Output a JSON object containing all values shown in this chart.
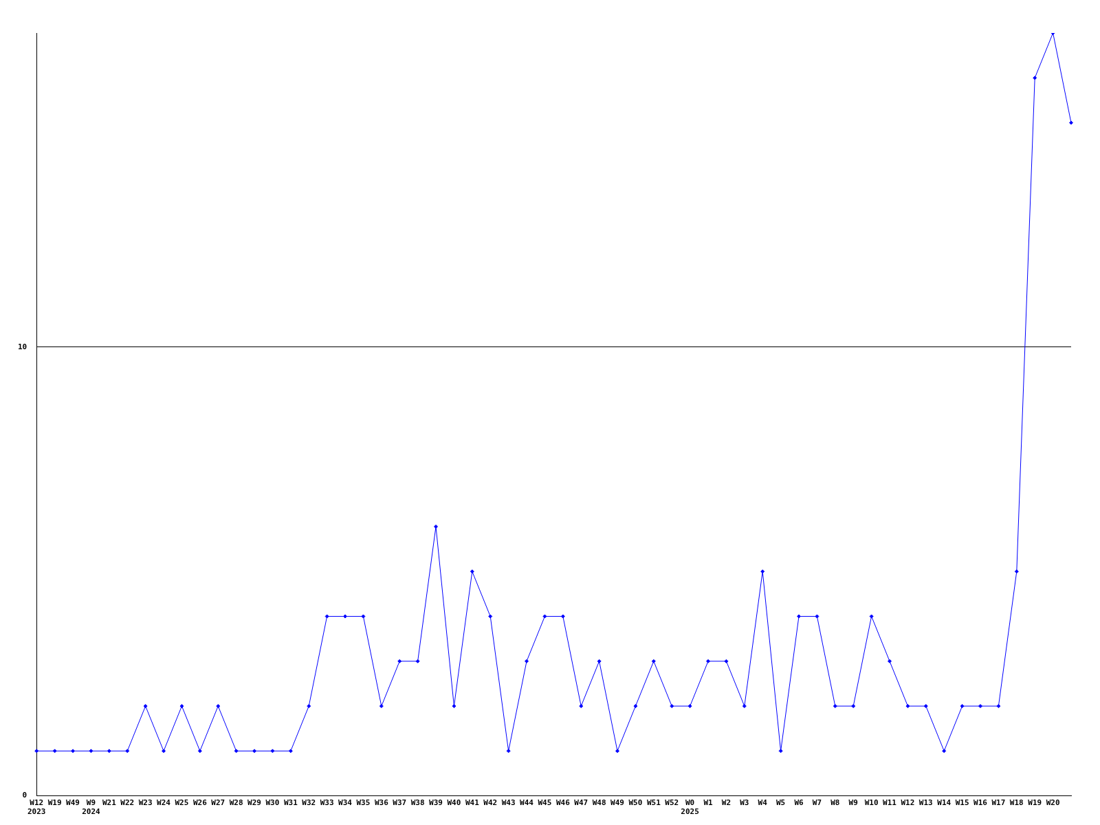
{
  "chart_data": {
    "type": "line",
    "categories": [
      "W12\n2023",
      "W19",
      "W49",
      "W9\n2024",
      "W21",
      "W22",
      "W23",
      "W24",
      "W25",
      "W26",
      "W27",
      "W28",
      "W29",
      "W30",
      "W31",
      "W32",
      "W33",
      "W34",
      "W35",
      "W36",
      "W37",
      "W38",
      "W39",
      "W40",
      "W41",
      "W42",
      "W43",
      "W44",
      "W45",
      "W46",
      "W47",
      "W48",
      "W49",
      "W50",
      "W51",
      "W52",
      "W0\n2025",
      "W1",
      "W2",
      "W3",
      "W4",
      "W5",
      "W6",
      "W7",
      "W8",
      "W9",
      "W10",
      "W11",
      "W12",
      "W13",
      "W14",
      "W15",
      "W16",
      "W17",
      "W18",
      "W19",
      "W20",
      null
    ],
    "series": [
      {
        "color": "#0000ff",
        "values": [
          1,
          1,
          1,
          1,
          1,
          1,
          2,
          1,
          2,
          1,
          2,
          1,
          1,
          1,
          1,
          2,
          4,
          4,
          4,
          2,
          3,
          3,
          6,
          2,
          5,
          4,
          1,
          3,
          4,
          4,
          2,
          3,
          1,
          2,
          3,
          2,
          2,
          3,
          3,
          2,
          5,
          1,
          4,
          4,
          2,
          2,
          4,
          3,
          2,
          2,
          1,
          2,
          2,
          2,
          5,
          16,
          17,
          15
        ]
      }
    ],
    "ylim": [
      0,
      17
    ],
    "yticks": [
      0,
      10
    ],
    "grid": "y",
    "legend": false,
    "marker": "diamond",
    "line_style": "solid"
  }
}
